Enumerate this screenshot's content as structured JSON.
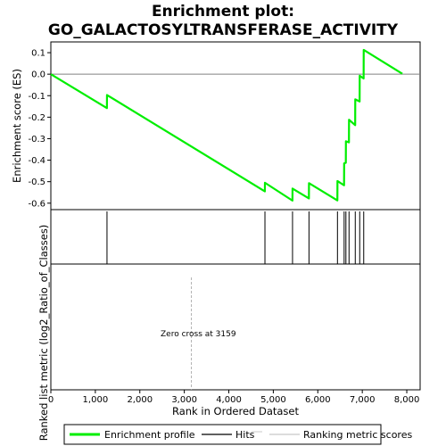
{
  "chart_data": {
    "type": "line",
    "title_line1": "Enrichment plot:",
    "title_line2": "GO_GALACTOSYLTRANSFERASE_ACTIVITY",
    "xlabel": "Rank in Ordered Dataset",
    "ylabel_top": "Enrichment score (ES)",
    "ylabel_bottom": "Ranked list metric (log2_Ratio_of_Classes)",
    "xlim": [
      0,
      8300
    ],
    "ylim": [
      -0.63,
      0.15
    ],
    "x_ticks": [
      0,
      1000,
      2000,
      3000,
      4000,
      5000,
      6000,
      7000,
      8000
    ],
    "x_tick_labels": [
      "0",
      "1,000",
      "2,000",
      "3,000",
      "4,000",
      "5,000",
      "6,000",
      "7,000",
      "8,000"
    ],
    "y_ticks": [
      0.1,
      0.0,
      -0.1,
      -0.2,
      -0.3,
      -0.4,
      -0.5,
      -0.6
    ],
    "y_tick_labels": [
      "0.1",
      "0.0",
      "-0.1",
      "-0.2",
      "-0.3",
      "-0.4",
      "-0.5",
      "-0.6"
    ],
    "series": [
      {
        "name": "Enrichment profile",
        "color": "#00ee00",
        "x": [
          0,
          1260,
          1262,
          4810,
          4812,
          5430,
          5432,
          5800,
          5802,
          6440,
          6442,
          6590,
          6592,
          6630,
          6632,
          6700,
          6702,
          6840,
          6842,
          6940,
          6942,
          7030,
          7032,
          7900
        ],
        "y": [
          0.0,
          -0.158,
          -0.097,
          -0.545,
          -0.505,
          -0.588,
          -0.532,
          -0.578,
          -0.507,
          -0.587,
          -0.497,
          -0.517,
          -0.415,
          -0.412,
          -0.312,
          -0.317,
          -0.212,
          -0.237,
          -0.117,
          -0.127,
          -0.007,
          -0.02,
          0.113,
          0.002
        ]
      }
    ],
    "hits": [
      1262,
      4812,
      5432,
      5802,
      6442,
      6592,
      6632,
      6702,
      6842,
      6942,
      7032
    ],
    "hits_color": "#000000",
    "metric_bands": [
      {
        "from": 0,
        "to": 1100,
        "color": "#ff5a5a"
      },
      {
        "from": 1100,
        "to": 1550,
        "color": "#ff7070"
      },
      {
        "from": 1550,
        "to": 2270,
        "color": "#ff8c8c"
      },
      {
        "from": 2270,
        "to": 3159,
        "color": "#ffbfdf"
      },
      {
        "from": 3159,
        "to": 4280,
        "color": "#d6d6f8"
      },
      {
        "from": 4280,
        "to": 4860,
        "color": "#bcbcf5"
      },
      {
        "from": 4860,
        "to": 5350,
        "color": "#aaaaf2"
      },
      {
        "from": 5350,
        "to": 6150,
        "color": "#8080ee"
      },
      {
        "from": 6150,
        "to": 7540,
        "color": "#5a5ae6"
      },
      {
        "from": 7540,
        "to": 7900,
        "color": "#1a1ac4"
      }
    ],
    "zero_cross": 3159,
    "zero_cross_label": "Zero cross at 3159",
    "legend": {
      "placement": "bottom",
      "items": [
        {
          "label": "Enrichment profile",
          "color": "#00ee00",
          "kind": "thick-line"
        },
        {
          "label": "Hits",
          "color": "#000000",
          "kind": "thin-line"
        },
        {
          "label": "Ranking metric scores",
          "color": "#c8c8c8",
          "kind": "thin-line"
        }
      ]
    }
  }
}
